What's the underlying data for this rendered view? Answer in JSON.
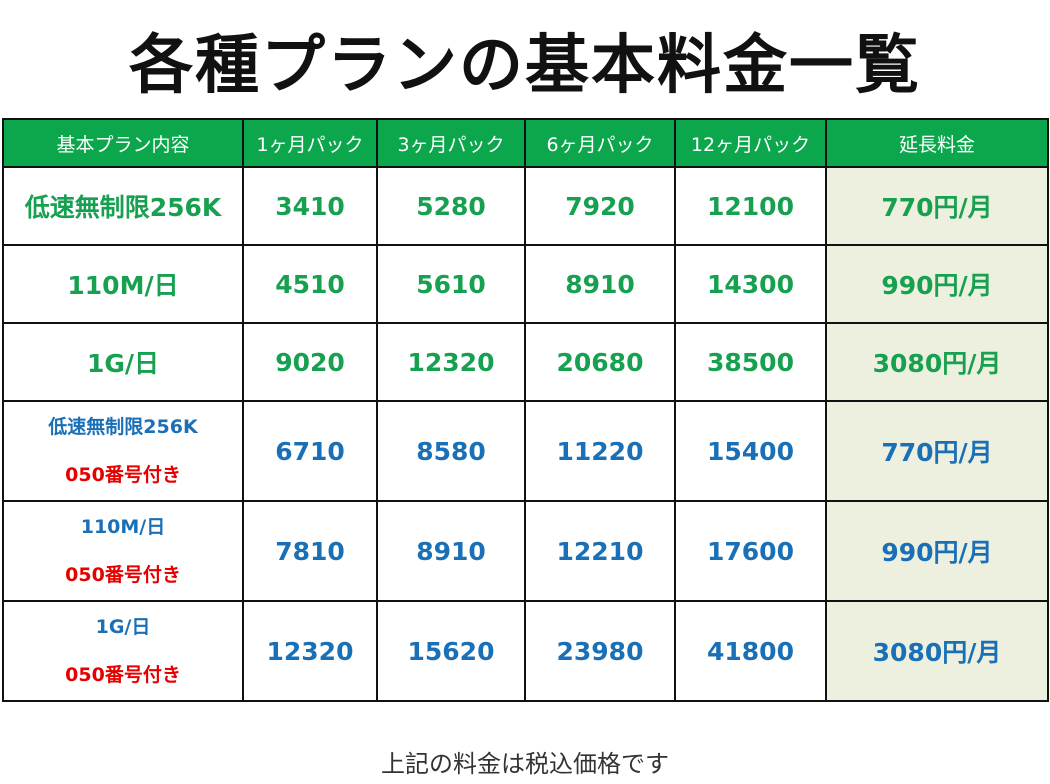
{
  "title": "各種プランの基本料金一覧",
  "colors": {
    "header": "#0ca74c",
    "green_text": "#17a050",
    "blue_text": "#1a70b6",
    "red_text": "#e60000",
    "extension_bg": "#edf0df"
  },
  "table": {
    "headers": [
      "基本プラン内容",
      "1ヶ月パック",
      "3ヶ月パック",
      "6ヶ月パック",
      "12ヶ月パック",
      "延長料金"
    ],
    "rows": [
      {
        "plan": "低速無制限256K",
        "sub": "",
        "values": [
          "3410",
          "5280",
          "7920",
          "12100"
        ],
        "ext": "770円/月"
      },
      {
        "plan": "110M/日",
        "sub": "",
        "values": [
          "4510",
          "5610",
          "8910",
          "14300"
        ],
        "ext": "990円/月"
      },
      {
        "plan": "1G/日",
        "sub": "",
        "values": [
          "9020",
          "12320",
          "20680",
          "38500"
        ],
        "ext": "3080円/月"
      },
      {
        "plan": "低速無制限256K",
        "sub": "050番号付き",
        "values": [
          "6710",
          "8580",
          "11220",
          "15400"
        ],
        "ext": "770円/月"
      },
      {
        "plan": "110M/日",
        "sub": "050番号付き",
        "values": [
          "7810",
          "8910",
          "12210",
          "17600"
        ],
        "ext": "990円/月"
      },
      {
        "plan": "1G/日",
        "sub": "050番号付き",
        "values": [
          "12320",
          "15620",
          "23980",
          "41800"
        ],
        "ext": "3080円/月"
      }
    ]
  },
  "footnote": "上記の料金は税込価格です"
}
